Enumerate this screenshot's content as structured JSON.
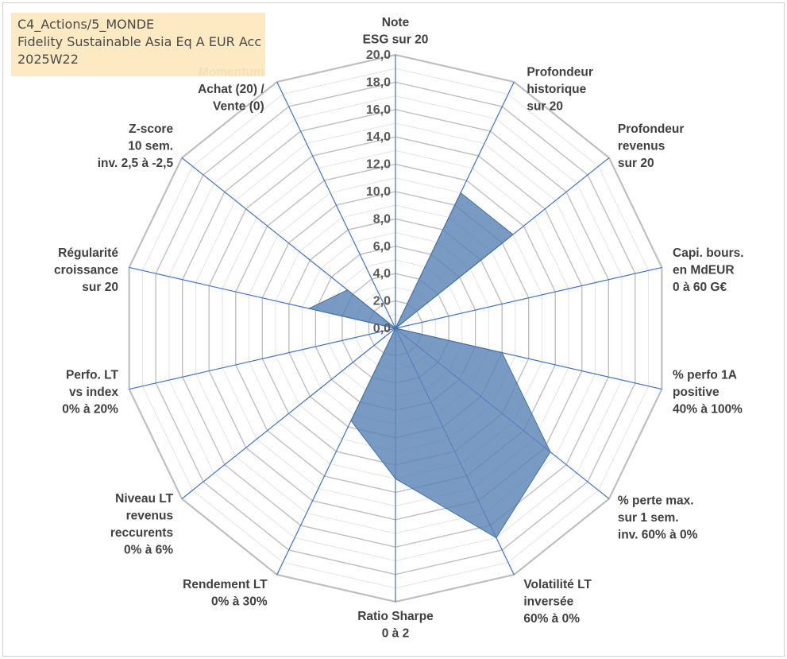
{
  "title": {
    "line1": "C4_Actions/5_MONDE",
    "line2": "Fidelity Sustainable Asia Eq A EUR Acc",
    "line3": "2025W22"
  },
  "chart_data": {
    "type": "radar",
    "rmin": 0,
    "rmax": 20,
    "tick_step": 2,
    "tick_labels": [
      "0,0",
      "2,0",
      "4,0",
      "6,0",
      "8,0",
      "10,0",
      "12,0",
      "14,0",
      "16,0",
      "18,0",
      "20,0"
    ],
    "grid": true,
    "axes": [
      {
        "label": [
          "Note",
          "ESG sur 20"
        ],
        "value": 0
      },
      {
        "label": [
          "Profondeur",
          "historique",
          "sur 20"
        ],
        "value": 11
      },
      {
        "label": [
          "Profondeur",
          "revenus",
          "sur 20"
        ],
        "value": 11
      },
      {
        "label": [
          "Capi. bours.",
          "en MdEUR",
          "0 à 60 G€"
        ],
        "value": 0
      },
      {
        "label": [
          "% perfo 1A",
          "positive",
          "40% à 100%"
        ],
        "value": 8
      },
      {
        "label": [
          "% perte max.",
          "sur 1 sem.",
          "inv. 60% à 0%"
        ],
        "value": 14.5
      },
      {
        "label": [
          "Volatilité LT",
          "inversée",
          "60% à 0%"
        ],
        "value": 17
      },
      {
        "label": [
          "Ratio Sharpe",
          "0 à 2"
        ],
        "value": 11
      },
      {
        "label": [
          "Rendement LT",
          "0% à 30%"
        ],
        "value": 7.5
      },
      {
        "label": [
          "Niveau LT",
          "revenus",
          "reccurents",
          "0% à 6%"
        ],
        "value": 0
      },
      {
        "label": [
          "Perfo. LT",
          "vs index",
          "0% à 20%"
        ],
        "value": 0
      },
      {
        "label": [
          "Régularité",
          "croissance",
          "sur 20"
        ],
        "value": 6.5
      },
      {
        "label": [
          "Z-score",
          "10 sem.",
          "inv. 2,5 à -2,5"
        ],
        "value": 4.5
      },
      {
        "label": [
          "Momentum",
          "Achat (20) /",
          "Vente (0)"
        ],
        "value": 0
      }
    ],
    "series": [
      {
        "name": "Fidelity Sustainable Asia Eq A EUR Acc"
      }
    ],
    "colors": {
      "fill": "#5b85b6",
      "fill_edge": "#44709f",
      "spoke": "#4472c4",
      "grid_major": "#bfbfbf",
      "grid_minor": "#e3e3e3"
    }
  }
}
